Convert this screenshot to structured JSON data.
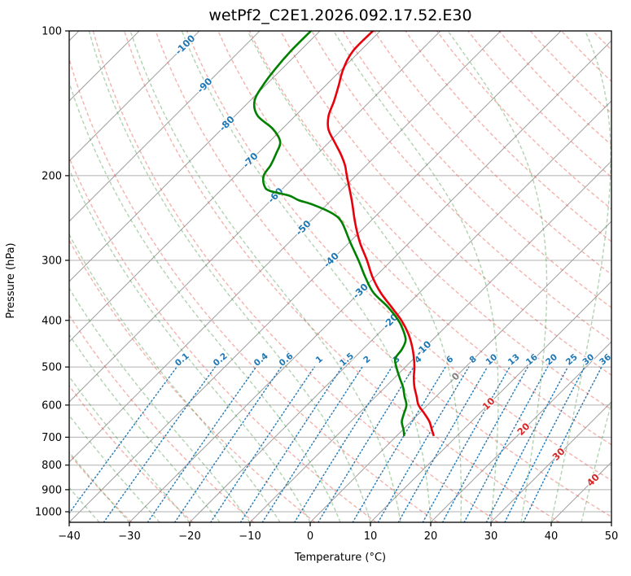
{
  "title": "wetPf2_C2E1.2026.092.17.52.E30",
  "axes": {
    "x_label": "Temperature (°C)",
    "y_label": "Pressure (hPa)",
    "x_ticks": [
      -40,
      -30,
      -20,
      -10,
      0,
      10,
      20,
      30,
      40,
      50
    ],
    "y_ticks": [
      100,
      200,
      300,
      400,
      500,
      600,
      700,
      800,
      900,
      1000
    ]
  },
  "chart_data": {
    "type": "line",
    "subtype": "skew-t-log-p",
    "x_axis": {
      "label": "Temperature (°C)",
      "range_c": [
        -40,
        50
      ],
      "skew_deg": 45
    },
    "y_axis": {
      "label": "Pressure (hPa)",
      "scale": "log",
      "range_hpa": [
        1052,
        100
      ]
    },
    "series": [
      {
        "name": "temperature",
        "color": "#e8000b",
        "points": [
          [
            100,
            -71.2
          ],
          [
            110,
            -71.2
          ],
          [
            120,
            -69.8
          ],
          [
            130,
            -67.8
          ],
          [
            140,
            -66.0
          ],
          [
            150,
            -64.5
          ],
          [
            160,
            -62.3
          ],
          [
            170,
            -59.2
          ],
          [
            180,
            -56.2
          ],
          [
            190,
            -53.6
          ],
          [
            200,
            -51.5
          ],
          [
            225,
            -46.6
          ],
          [
            250,
            -42.4
          ],
          [
            275,
            -38.3
          ],
          [
            300,
            -34.1
          ],
          [
            325,
            -30.4
          ],
          [
            350,
            -26.5
          ],
          [
            375,
            -22.3
          ],
          [
            400,
            -18.4
          ],
          [
            425,
            -15.2
          ],
          [
            450,
            -12.6
          ],
          [
            475,
            -10.4
          ],
          [
            500,
            -8.5
          ],
          [
            525,
            -6.9
          ],
          [
            550,
            -5.2
          ],
          [
            575,
            -3.3
          ],
          [
            600,
            -1.5
          ],
          [
            625,
            0.9
          ],
          [
            650,
            3.1
          ],
          [
            675,
            4.8
          ],
          [
            693,
            6.0
          ]
        ]
      },
      {
        "name": "dewpoint",
        "color": "#008000",
        "points": [
          [
            100,
            -81.5
          ],
          [
            110,
            -81.5
          ],
          [
            120,
            -81.1
          ],
          [
            130,
            -80.4
          ],
          [
            140,
            -79.2
          ],
          [
            150,
            -76.3
          ],
          [
            160,
            -71.5
          ],
          [
            170,
            -68.2
          ],
          [
            180,
            -66.9
          ],
          [
            190,
            -65.9
          ],
          [
            200,
            -65.3
          ],
          [
            210,
            -63.5
          ],
          [
            215,
            -61.8
          ],
          [
            220,
            -57.8
          ],
          [
            225,
            -55.4
          ],
          [
            230,
            -52.2
          ],
          [
            240,
            -47.5
          ],
          [
            250,
            -44.6
          ],
          [
            275,
            -39.9
          ],
          [
            300,
            -35.5
          ],
          [
            325,
            -31.6
          ],
          [
            350,
            -27.7
          ],
          [
            375,
            -22.9
          ],
          [
            400,
            -18.9
          ],
          [
            420,
            -16.4
          ],
          [
            440,
            -14.4
          ],
          [
            460,
            -13.5
          ],
          [
            480,
            -13.1
          ],
          [
            500,
            -11.5
          ],
          [
            525,
            -9.3
          ],
          [
            550,
            -7.1
          ],
          [
            575,
            -5.3
          ],
          [
            600,
            -3.5
          ],
          [
            625,
            -2.5
          ],
          [
            650,
            -1.5
          ],
          [
            675,
            0.1
          ],
          [
            693,
            1.1
          ]
        ]
      }
    ],
    "background": {
      "isobars_hpa": [
        100,
        200,
        300,
        400,
        500,
        600,
        700,
        800,
        900,
        1000
      ],
      "isotherm_range_c": [
        -120,
        50
      ],
      "isotherm_step_c": 10,
      "dry_adiabats_theta_k": {
        "start": 230,
        "end": 480,
        "step": 10
      },
      "moist_adiabats_t0_c": {
        "start": -60,
        "end": 50,
        "step": 5,
        "start_pressure_hpa": 1052
      },
      "mixing_ratio_g_kg": [
        0.1,
        0.2,
        0.4,
        0.6,
        1,
        1.5,
        2,
        3,
        4,
        6,
        8,
        10,
        13,
        16,
        20,
        25,
        30,
        36
      ],
      "mixing_lines_top_hpa": 500,
      "mixing_label_pressure_hpa": 483,
      "colors": {
        "isobar": "#b0b0b0",
        "isotherm": "#a0a0a0",
        "dry_adiabat": "rgba(230,85,70,0.45)",
        "moist_adiabat": "rgba(60,145,60,0.40)",
        "mixing_ratio": "rgba(31,119,180,0.95)",
        "mixing_label": "#1f77b4"
      }
    },
    "isotherm_labels": [
      {
        "t": -100,
        "p": 107,
        "color": "#1f77b4"
      },
      {
        "t": -90,
        "p": 130,
        "color": "#1f77b4"
      },
      {
        "t": -80,
        "p": 156,
        "color": "#1f77b4"
      },
      {
        "t": -70,
        "p": 186,
        "color": "#1f77b4"
      },
      {
        "t": -60,
        "p": 220,
        "color": "#1f77b4"
      },
      {
        "t": -50,
        "p": 257,
        "color": "#1f77b4"
      },
      {
        "t": -40,
        "p": 300,
        "color": "#1f77b4"
      },
      {
        "t": -30,
        "p": 348,
        "color": "#1f77b4"
      },
      {
        "t": -20,
        "p": 402,
        "color": "#1f77b4"
      },
      {
        "t": -10,
        "p": 458,
        "color": "#1f77b4"
      },
      {
        "t": 0,
        "p": 524,
        "color": "#7f7f7f"
      },
      {
        "t": 10,
        "p": 597,
        "color": "#d62728"
      },
      {
        "t": 20,
        "p": 674,
        "color": "#d62728"
      },
      {
        "t": 30,
        "p": 760,
        "color": "#d62728"
      },
      {
        "t": 40,
        "p": 860,
        "color": "#d62728"
      }
    ]
  }
}
